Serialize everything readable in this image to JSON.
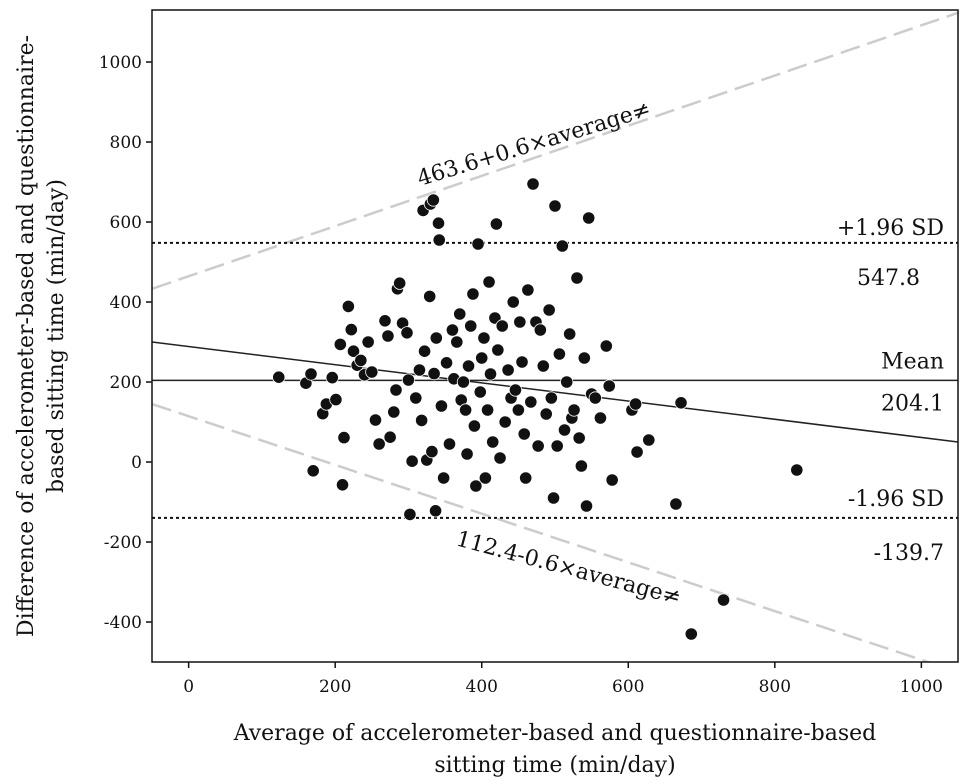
{
  "chart_data": {
    "type": "scatter",
    "xlabel_line1": "Average  of accelerometer-based  and questionnaire-based",
    "xlabel_line2": "sitting time (min/day)",
    "ylabel_line1": "Difference of accelerometer-based  and questionnaire-",
    "ylabel_line2": "based  sitting time (min/day)",
    "xlim": [
      -50,
      1050
    ],
    "ylim": [
      -500,
      1130
    ],
    "xticks": [
      0,
      200,
      400,
      600,
      800,
      1000
    ],
    "yticks": [
      -400,
      -200,
      0,
      200,
      400,
      600,
      800,
      1000
    ],
    "grid": false,
    "colors": {
      "points": "#111111",
      "limits_of_agreement": "#111111",
      "mean_line": "#222222",
      "regression_limits": "#cccccc"
    },
    "mean": {
      "value": 204.1,
      "label": "Mean",
      "value_label": "204.1"
    },
    "upper_loa": {
      "value": 547.8,
      "label": "+1.96 SD",
      "value_label": "547.8"
    },
    "lower_loa": {
      "value": -139.7,
      "label": "-1.96 SD",
      "value_label": "-139.7"
    },
    "regression_line": {
      "x": [
        -50,
        1050
      ],
      "y": [
        300,
        50
      ]
    },
    "upper_regression_limit": {
      "label": "463.6+0.6×average≠",
      "x": [
        -50,
        1050
      ],
      "y": [
        433,
        1123
      ]
    },
    "lower_regression_limit": {
      "label": "112.4-0.6×average≠",
      "x": [
        -50,
        1050
      ],
      "y": [
        145,
        -525
      ]
    },
    "points": [
      [
        123,
        212
      ],
      [
        160,
        197
      ],
      [
        167,
        220
      ],
      [
        170,
        -22
      ],
      [
        183,
        121
      ],
      [
        188,
        145
      ],
      [
        196,
        211
      ],
      [
        201,
        156
      ],
      [
        207,
        294
      ],
      [
        210,
        -57
      ],
      [
        212,
        61
      ],
      [
        218,
        389
      ],
      [
        222,
        331
      ],
      [
        225,
        277
      ],
      [
        230,
        242
      ],
      [
        235,
        254
      ],
      [
        240,
        218
      ],
      [
        245,
        300
      ],
      [
        250,
        225
      ],
      [
        255,
        105
      ],
      [
        260,
        45
      ],
      [
        268,
        353
      ],
      [
        272,
        315
      ],
      [
        275,
        62
      ],
      [
        280,
        125
      ],
      [
        283,
        180
      ],
      [
        285,
        433
      ],
      [
        288,
        447
      ],
      [
        292,
        347
      ],
      [
        298,
        323
      ],
      [
        300,
        205
      ],
      [
        302,
        -131
      ],
      [
        305,
        2
      ],
      [
        310,
        160
      ],
      [
        315,
        230
      ],
      [
        318,
        104
      ],
      [
        320,
        629
      ],
      [
        322,
        277
      ],
      [
        325,
        5
      ],
      [
        329,
        414
      ],
      [
        330,
        645
      ],
      [
        332,
        26
      ],
      [
        334,
        655
      ],
      [
        335,
        221
      ],
      [
        337,
        -122
      ],
      [
        338,
        310
      ],
      [
        341,
        597
      ],
      [
        342,
        555
      ],
      [
        345,
        140
      ],
      [
        348,
        -40
      ],
      [
        352,
        248
      ],
      [
        356,
        45
      ],
      [
        360,
        330
      ],
      [
        362,
        208
      ],
      [
        366,
        300
      ],
      [
        370,
        370
      ],
      [
        372,
        155
      ],
      [
        375,
        200
      ],
      [
        378,
        130
      ],
      [
        380,
        20
      ],
      [
        382,
        240
      ],
      [
        385,
        340
      ],
      [
        388,
        420
      ],
      [
        390,
        90
      ],
      [
        392,
        -60
      ],
      [
        395,
        545
      ],
      [
        398,
        175
      ],
      [
        400,
        260
      ],
      [
        403,
        310
      ],
      [
        405,
        -40
      ],
      [
        408,
        130
      ],
      [
        410,
        450
      ],
      [
        412,
        220
      ],
      [
        415,
        50
      ],
      [
        418,
        360
      ],
      [
        420,
        595
      ],
      [
        422,
        280
      ],
      [
        425,
        10
      ],
      [
        428,
        340
      ],
      [
        432,
        100
      ],
      [
        436,
        230
      ],
      [
        440,
        160
      ],
      [
        443,
        400
      ],
      [
        446,
        180
      ],
      [
        450,
        130
      ],
      [
        452,
        350
      ],
      [
        455,
        250
      ],
      [
        458,
        70
      ],
      [
        460,
        -40
      ],
      [
        463,
        430
      ],
      [
        467,
        150
      ],
      [
        470,
        695
      ],
      [
        474,
        350
      ],
      [
        477,
        40
      ],
      [
        480,
        330
      ],
      [
        484,
        240
      ],
      [
        488,
        120
      ],
      [
        492,
        380
      ],
      [
        495,
        160
      ],
      [
        498,
        -90
      ],
      [
        500,
        640
      ],
      [
        503,
        40
      ],
      [
        506,
        270
      ],
      [
        510,
        540
      ],
      [
        513,
        80
      ],
      [
        516,
        200
      ],
      [
        520,
        320
      ],
      [
        523,
        110
      ],
      [
        526,
        130
      ],
      [
        530,
        460
      ],
      [
        533,
        60
      ],
      [
        536,
        -10
      ],
      [
        540,
        260
      ],
      [
        543,
        -110
      ],
      [
        546,
        610
      ],
      [
        550,
        170
      ],
      [
        555,
        160
      ],
      [
        562,
        110
      ],
      [
        570,
        290
      ],
      [
        574,
        190
      ],
      [
        578,
        -45
      ],
      [
        605,
        130
      ],
      [
        610,
        145
      ],
      [
        612,
        25
      ],
      [
        628,
        55
      ],
      [
        665,
        -105
      ],
      [
        672,
        148
      ],
      [
        686,
        -430
      ],
      [
        730,
        -345
      ],
      [
        830,
        -20
      ]
    ]
  }
}
